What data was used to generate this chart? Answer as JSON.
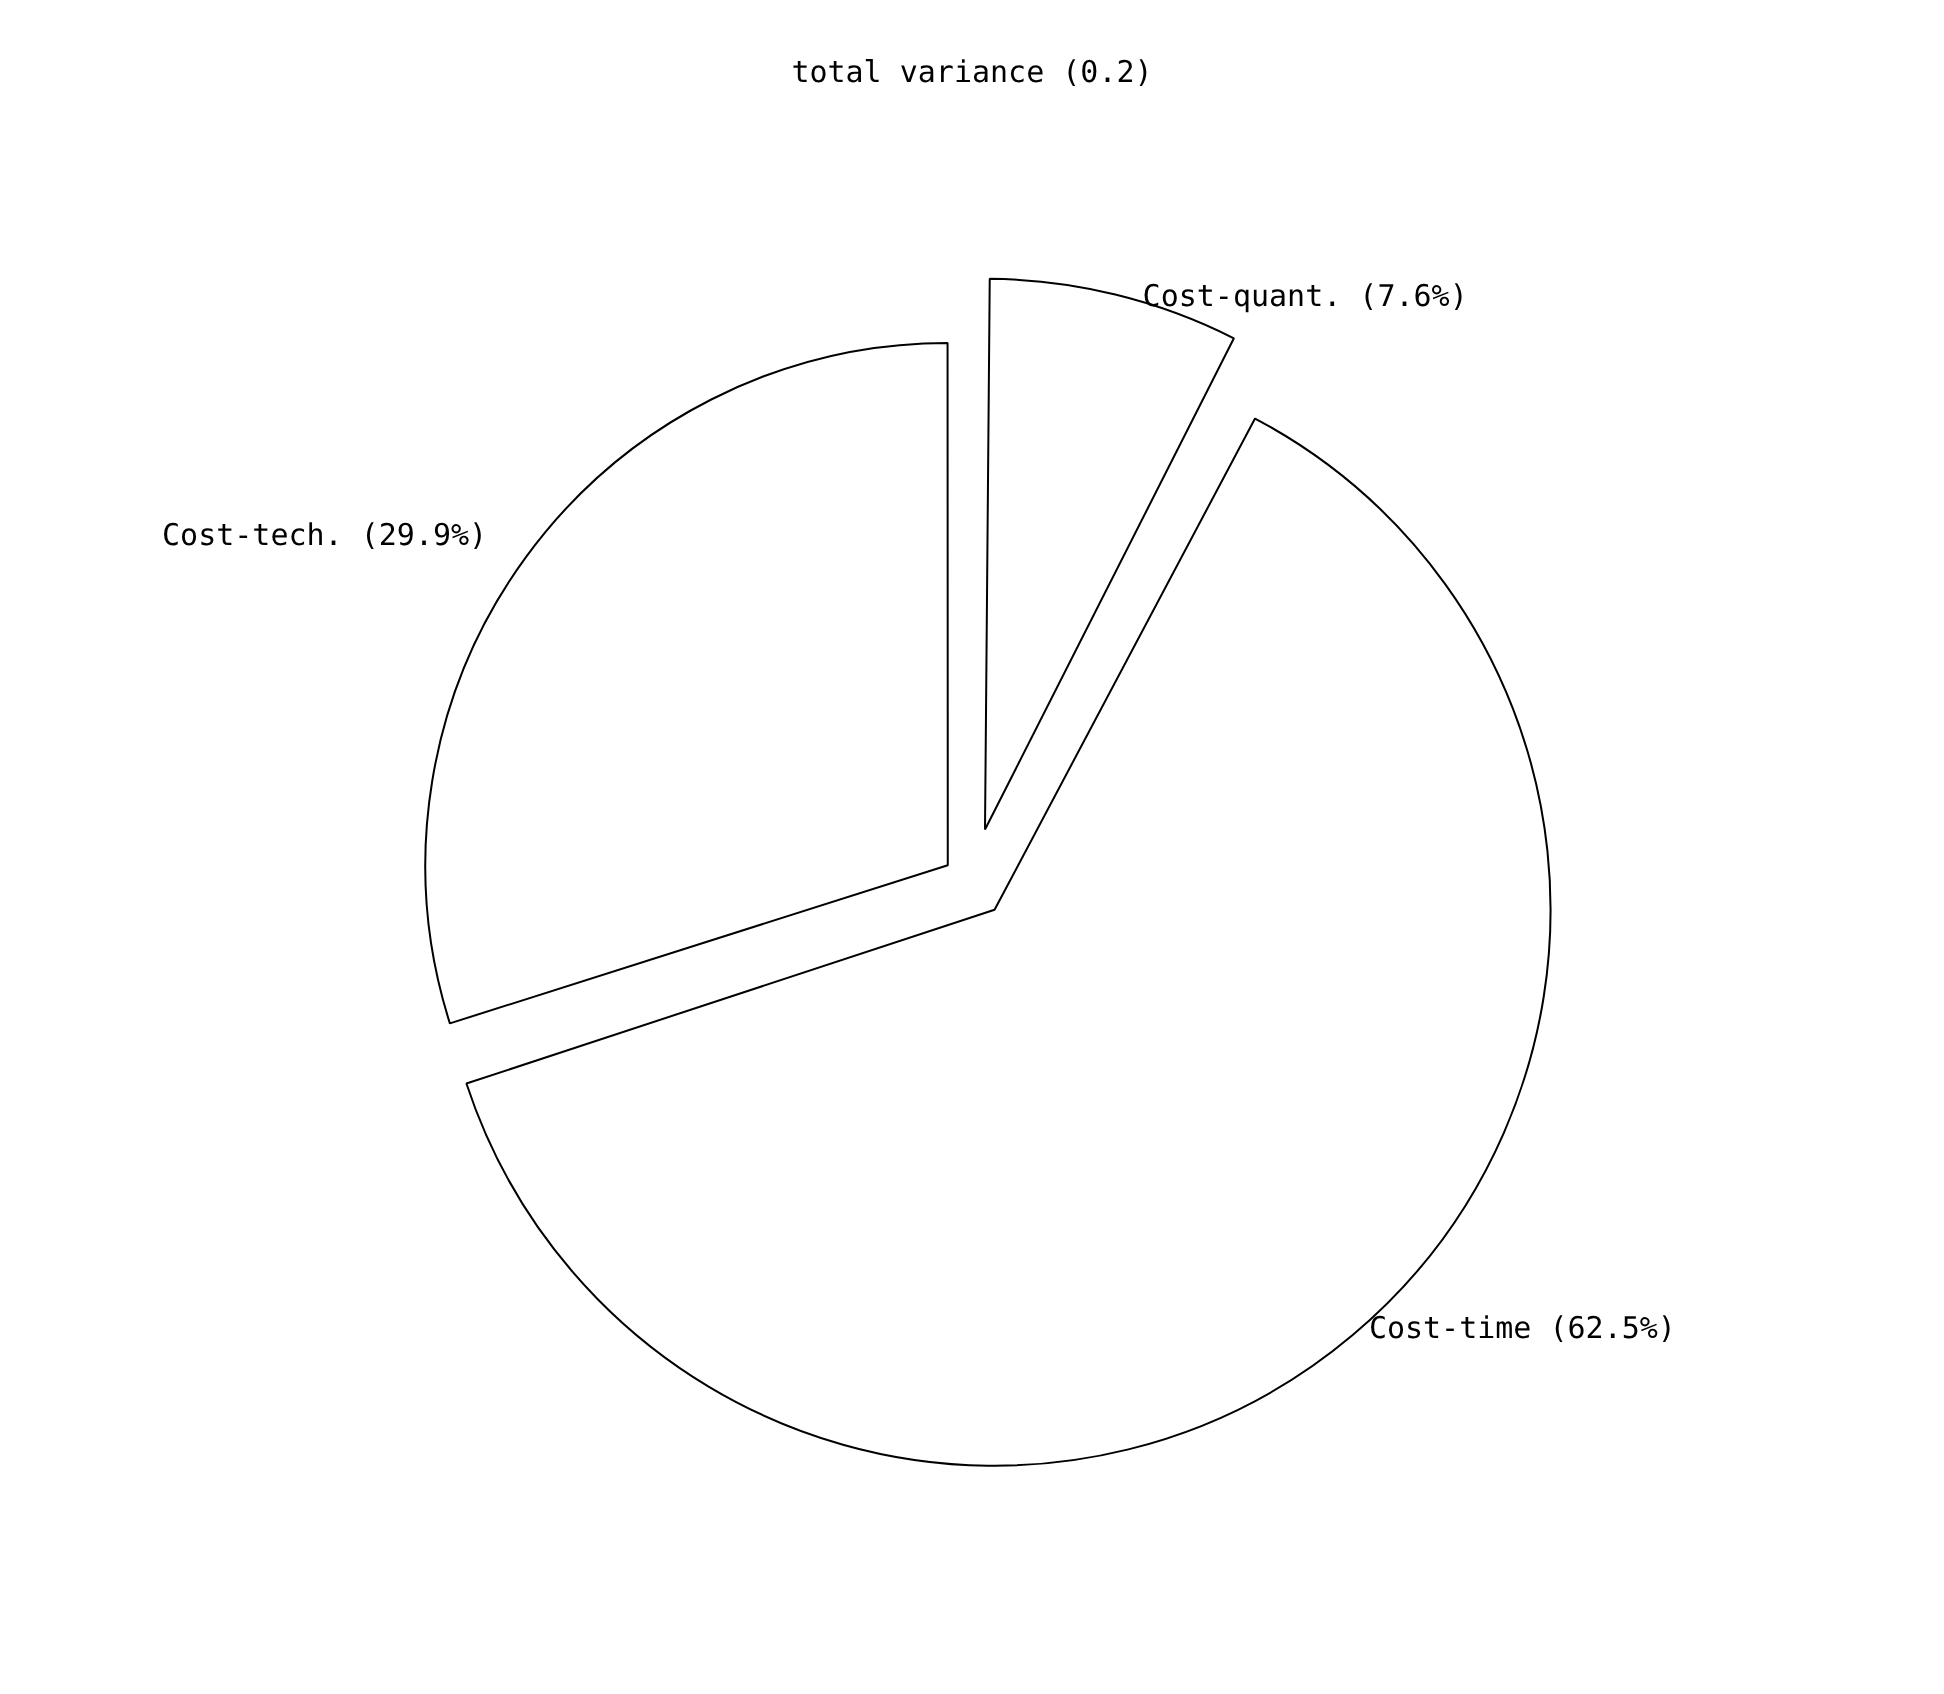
{
  "chart_data": {
    "type": "pie",
    "title": "total variance (0.2)",
    "categories": [
      "Cost-quant. (7.6%)",
      "Cost-time (62.5%)",
      "Cost-tech. (29.9%)"
    ],
    "values": [
      7.6,
      62.5,
      29.9
    ],
    "colors": [
      "#ffffff",
      "#ffffff",
      "#ffffff"
    ]
  }
}
